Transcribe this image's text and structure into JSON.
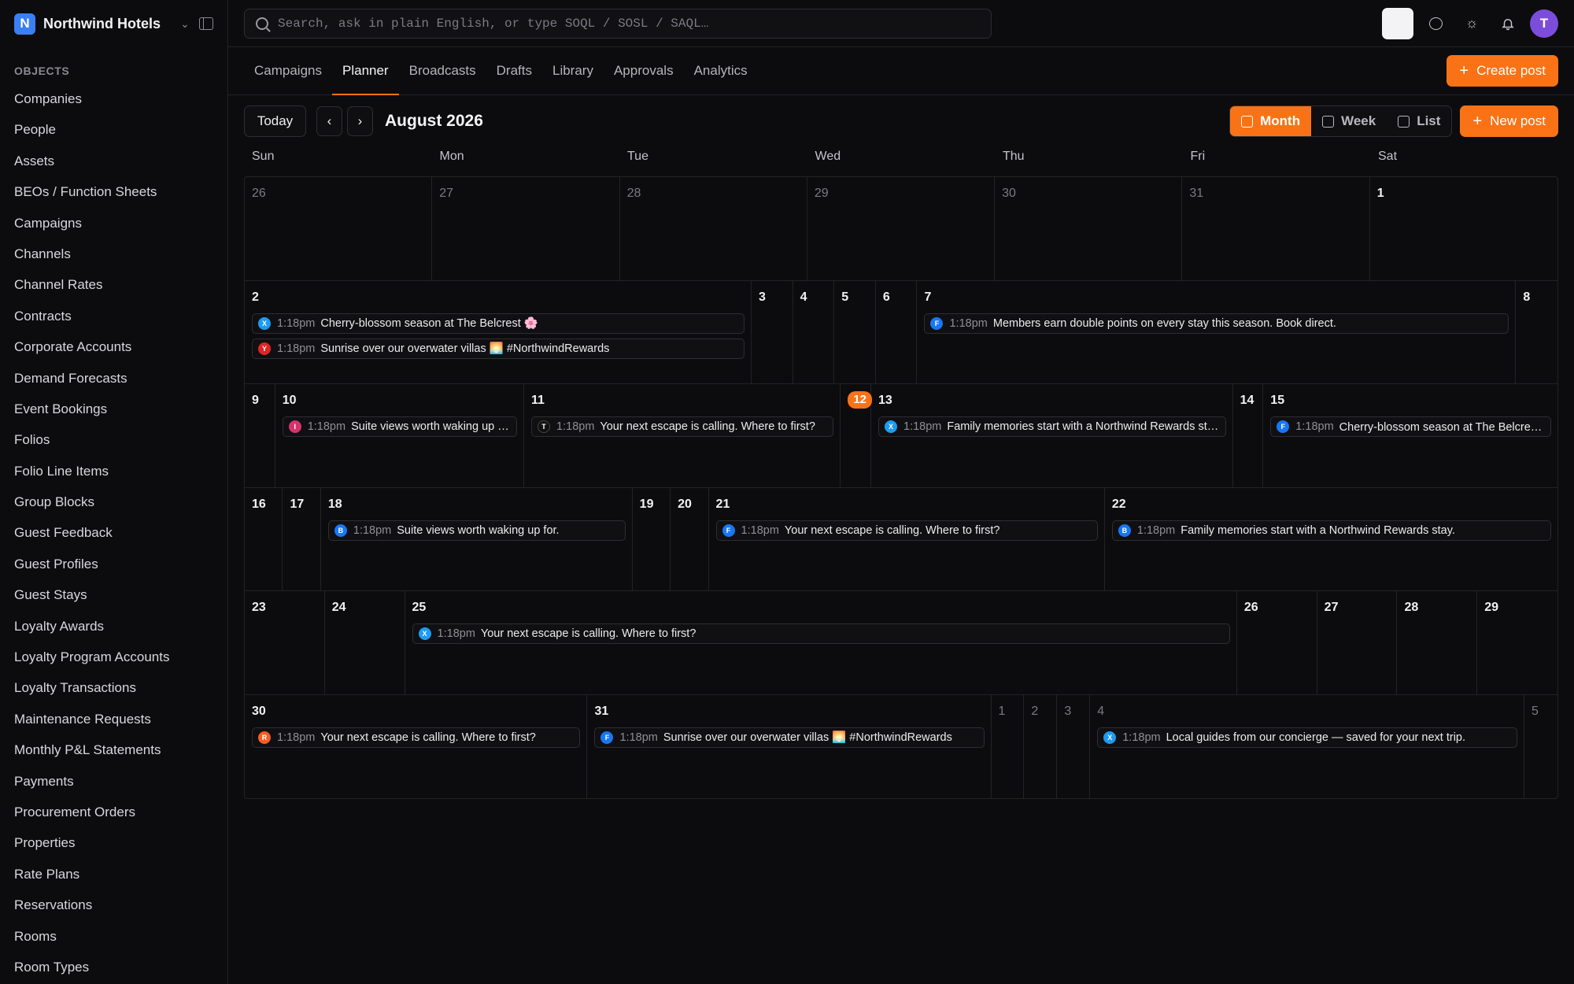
{
  "brand": {
    "name": "Northwind Hotels",
    "initial": "N"
  },
  "sidebar": {
    "section": "OBJECTS",
    "items": [
      "Companies",
      "People",
      "Assets",
      "BEOs / Function Sheets",
      "Campaigns",
      "Channels",
      "Channel Rates",
      "Contracts",
      "Corporate Accounts",
      "Demand Forecasts",
      "Event Bookings",
      "Folios",
      "Folio Line Items",
      "Group Blocks",
      "Guest Feedback",
      "Guest Profiles",
      "Guest Stays",
      "Loyalty Awards",
      "Loyalty Program Accounts",
      "Loyalty Transactions",
      "Maintenance Requests",
      "Monthly P&L Statements",
      "Payments",
      "Procurement Orders",
      "Properties",
      "Rate Plans",
      "Reservations",
      "Rooms",
      "Room Types"
    ]
  },
  "search": {
    "placeholder": "Search, ask in plain English, or type SOQL / SOSL / SAQL…"
  },
  "user": {
    "initial": "T"
  },
  "tabs": [
    "Campaigns",
    "Planner",
    "Broadcasts",
    "Drafts",
    "Library",
    "Approvals",
    "Analytics"
  ],
  "active_tab": "Planner",
  "create_post_label": "Create post",
  "toolbar": {
    "today_label": "Today",
    "prev": "‹",
    "next": "›",
    "month_title": "August 2026",
    "views": [
      "Month",
      "Week",
      "List"
    ],
    "active_view": "Month",
    "new_post_label": "New post"
  },
  "weekdays": [
    "Sun",
    "Mon",
    "Tue",
    "Wed",
    "Thu",
    "Fri",
    "Sat"
  ],
  "colors": {
    "accent": "#f97316",
    "X": "#1d9bf0",
    "Y": "#e02424",
    "F": "#1877f2",
    "I": "#d6336c",
    "T": "#111111",
    "B": "#1877f2",
    "R": "#f45d22"
  },
  "weeks": [
    {
      "days": [
        {
          "n": "26",
          "muted": true,
          "posts": []
        },
        {
          "n": "27",
          "muted": true,
          "posts": []
        },
        {
          "n": "28",
          "muted": true,
          "posts": []
        },
        {
          "n": "29",
          "muted": true,
          "posts": []
        },
        {
          "n": "30",
          "muted": true,
          "posts": []
        },
        {
          "n": "31",
          "muted": true,
          "posts": []
        },
        {
          "n": "1",
          "posts": []
        }
      ]
    },
    {
      "days": [
        {
          "n": "2",
          "posts": [
            {
              "c": "X",
              "time": "1:18pm",
              "text": "Cherry-blossom season at The Belcrest 🌸"
            },
            {
              "c": "Y",
              "time": "1:18pm",
              "text": "Sunrise over our overwater villas 🌅 #NorthwindRewards"
            }
          ]
        },
        {
          "n": "3",
          "posts": []
        },
        {
          "n": "4",
          "posts": []
        },
        {
          "n": "5",
          "posts": []
        },
        {
          "n": "6",
          "posts": []
        },
        {
          "n": "7",
          "posts": [
            {
              "c": "F",
              "time": "1:18pm",
              "text": "Members earn double points on every stay this season. Book direct."
            }
          ]
        },
        {
          "n": "8",
          "posts": []
        }
      ]
    },
    {
      "days": [
        {
          "n": "9",
          "posts": []
        },
        {
          "n": "10",
          "posts": [
            {
              "c": "I",
              "time": "1:18pm",
              "text": "Suite views worth waking up for."
            }
          ]
        },
        {
          "n": "11",
          "posts": [
            {
              "c": "T",
              "time": "1:18pm",
              "text": "Your next escape is calling. Where to first?"
            }
          ]
        },
        {
          "n": "12",
          "today": true,
          "posts": []
        },
        {
          "n": "13",
          "posts": [
            {
              "c": "X",
              "time": "1:18pm",
              "text": "Family memories start with a Northwind Rewards stay."
            }
          ]
        },
        {
          "n": "14",
          "posts": []
        },
        {
          "n": "15",
          "posts": [
            {
              "c": "F",
              "time": "1:18pm",
              "text": "Cherry-blossom season at The Belcrest 🌸"
            }
          ]
        }
      ]
    },
    {
      "days": [
        {
          "n": "16",
          "posts": []
        },
        {
          "n": "17",
          "posts": []
        },
        {
          "n": "18",
          "posts": [
            {
              "c": "B",
              "time": "1:18pm",
              "text": "Suite views worth waking up for."
            }
          ]
        },
        {
          "n": "19",
          "posts": []
        },
        {
          "n": "20",
          "posts": []
        },
        {
          "n": "21",
          "posts": [
            {
              "c": "F",
              "time": "1:18pm",
              "text": "Your next escape is calling. Where to first?"
            }
          ]
        },
        {
          "n": "22",
          "posts": [
            {
              "c": "B",
              "time": "1:18pm",
              "text": "Family memories start with a Northwind Rewards stay."
            }
          ]
        }
      ]
    },
    {
      "days": [
        {
          "n": "23",
          "posts": []
        },
        {
          "n": "24",
          "posts": []
        },
        {
          "n": "25",
          "posts": [
            {
              "c": "X",
              "time": "1:18pm",
              "text": "Your next escape is calling. Where to first?"
            }
          ]
        },
        {
          "n": "26",
          "posts": []
        },
        {
          "n": "27",
          "posts": []
        },
        {
          "n": "28",
          "posts": []
        },
        {
          "n": "29",
          "posts": []
        }
      ]
    },
    {
      "days": [
        {
          "n": "30",
          "posts": [
            {
              "c": "R",
              "time": "1:18pm",
              "text": "Your next escape is calling. Where to first?"
            }
          ]
        },
        {
          "n": "31",
          "posts": [
            {
              "c": "F",
              "time": "1:18pm",
              "text": "Sunrise over our overwater villas 🌅 #NorthwindRewards"
            }
          ]
        },
        {
          "n": "1",
          "muted": true,
          "posts": []
        },
        {
          "n": "2",
          "muted": true,
          "posts": []
        },
        {
          "n": "3",
          "muted": true,
          "posts": []
        },
        {
          "n": "4",
          "muted": true,
          "posts": [
            {
              "c": "X",
              "time": "1:18pm",
              "text": "Local guides from our concierge — saved for your next trip."
            }
          ]
        },
        {
          "n": "5",
          "muted": true,
          "posts": []
        }
      ]
    }
  ]
}
